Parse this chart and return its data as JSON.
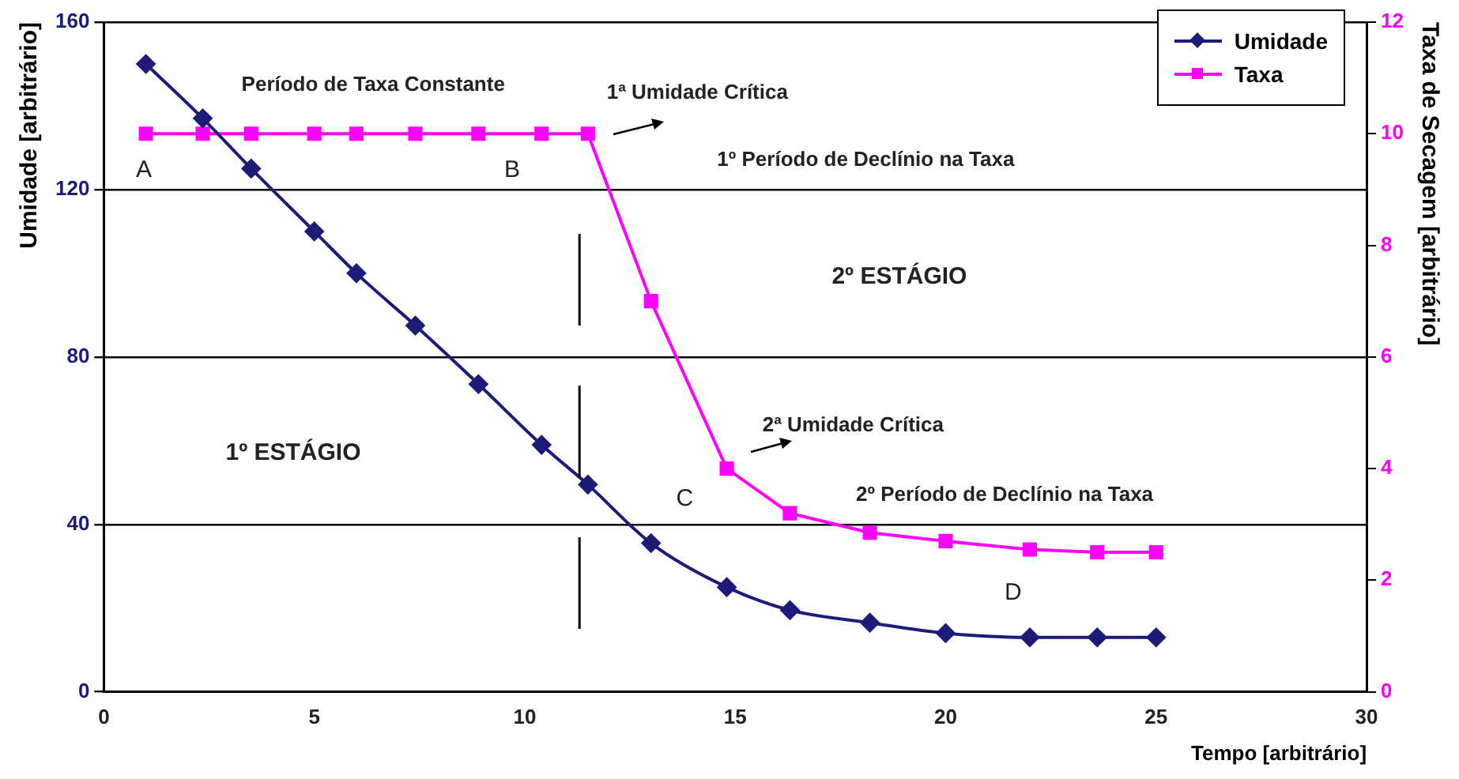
{
  "chart_data": {
    "type": "line",
    "xlabel": "Tempo [arbitrário]",
    "ylabel": "Umidade [arbitrário]",
    "y2label": "Taxa de Secagem [arbitrário]",
    "x": [
      1,
      2.35,
      3.5,
      5,
      6,
      7.4,
      8.9,
      10.4,
      11.5,
      13,
      14.8,
      16.3,
      18.2,
      20,
      22,
      23.6,
      25
    ],
    "series": [
      {
        "name": "Umidade",
        "color": "#1c1c78",
        "marker": "diamond",
        "values": [
          150,
          137,
          125,
          110,
          100,
          87.5,
          73.5,
          59,
          49.5,
          35.5,
          25,
          19.5,
          16.5,
          14,
          13,
          13,
          13
        ]
      },
      {
        "name": "Taxa",
        "color": "#ff00ff",
        "marker": "square",
        "axis": "y2",
        "values": [
          10,
          10,
          10,
          10,
          10,
          10,
          10,
          10,
          10,
          7,
          4,
          3.2,
          2.85,
          2.7,
          2.55,
          2.5,
          2.5
        ]
      }
    ],
    "xlim": [
      0,
      30
    ],
    "xticks": [
      0,
      5,
      10,
      15,
      20,
      25,
      30
    ],
    "ylim": [
      0,
      160
    ],
    "yticks": [
      0,
      40,
      80,
      120,
      160
    ],
    "y2lim": [
      0,
      12
    ],
    "y2ticks": [
      0,
      2,
      4,
      6,
      8,
      10,
      12
    ],
    "grid": "y",
    "legend": "top right",
    "line_style": "solid",
    "ref_lines": [
      {
        "axis": "x",
        "value": 11.3,
        "line_style": "dashed",
        "color": "#000000"
      }
    ],
    "annotations": [
      "Período de Taxa Constante",
      "1ª Umidade Crítica",
      "1º Período de Declínio na Taxa",
      "A",
      "B",
      "2º ESTÁGIO",
      "1º ESTÁGIO",
      "2ª Umidade Crítica",
      "C",
      "2º Período de Declínio na Taxa",
      "D"
    ]
  }
}
